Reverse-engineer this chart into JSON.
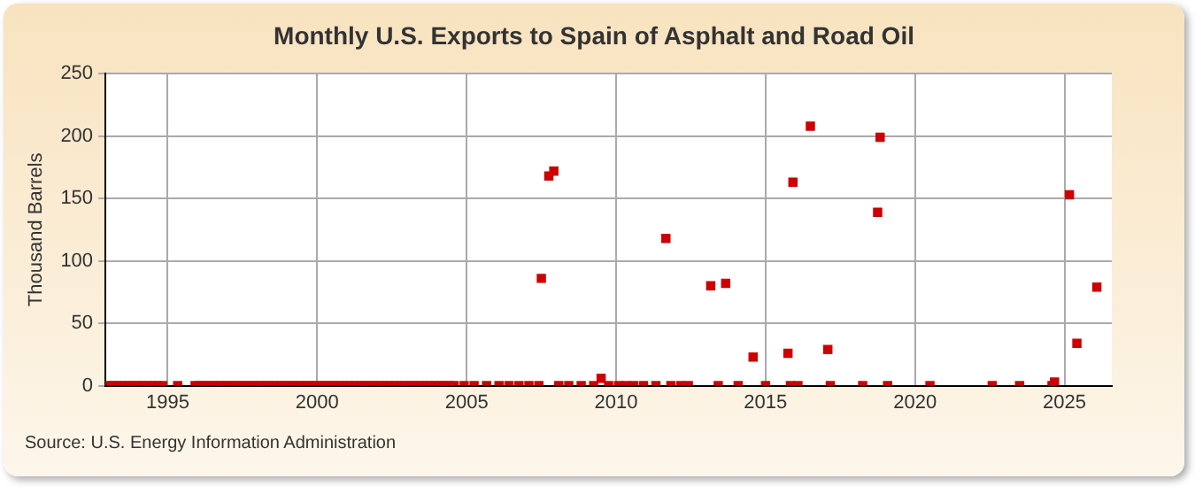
{
  "chart_data": {
    "type": "scatter",
    "title": "Monthly U.S. Exports to Spain of Asphalt and Road Oil",
    "ylabel": "Thousand Barrels",
    "annotations": [
      "Source: U.S. Energy Information Administration"
    ],
    "xlim": [
      "1992-12",
      "2026-08"
    ],
    "xticks": [
      "1995",
      "2000",
      "2005",
      "2010",
      "2015",
      "2020",
      "2025"
    ],
    "ylim": [
      0,
      250
    ],
    "yticks": [
      0,
      50,
      100,
      150,
      200,
      250
    ],
    "grid": true,
    "legend": false,
    "marker": "square",
    "series": [
      {
        "color": "#cc0000",
        "x": [
          "1993-01",
          "1993-03",
          "1993-05",
          "1993-07",
          "1993-09",
          "1993-11",
          "1994-01",
          "1994-03",
          "1994-05",
          "1994-07",
          "1994-09",
          "1994-11",
          "1995-05",
          "1995-12",
          "1996-02",
          "1996-04",
          "1996-06",
          "1996-08",
          "1996-10",
          "1996-12",
          "1997-02",
          "1997-04",
          "1997-06",
          "1997-08",
          "1997-10",
          "1997-12",
          "1998-02",
          "1998-04",
          "1998-06",
          "1998-08",
          "1998-10",
          "1998-12",
          "1999-02",
          "1999-04",
          "1999-06",
          "1999-08",
          "1999-10",
          "1999-12",
          "2000-02",
          "2000-04",
          "2000-06",
          "2000-08",
          "2000-10",
          "2000-12",
          "2001-02",
          "2001-04",
          "2001-06",
          "2001-08",
          "2001-10",
          "2001-12",
          "2002-02",
          "2002-04",
          "2002-06",
          "2002-08",
          "2002-10",
          "2002-12",
          "2003-02",
          "2003-04",
          "2003-06",
          "2003-08",
          "2003-10",
          "2003-12",
          "2004-02",
          "2004-04",
          "2004-06",
          "2004-08",
          "2004-12",
          "2005-04",
          "2005-09",
          "2006-02",
          "2006-06",
          "2006-10",
          "2007-02",
          "2007-06",
          "2007-07",
          "2007-10",
          "2007-12",
          "2008-02",
          "2008-06",
          "2008-11",
          "2009-04",
          "2009-07",
          "2009-10",
          "2010-02",
          "2010-05",
          "2010-08",
          "2010-12",
          "2011-05",
          "2011-09",
          "2011-11",
          "2012-03",
          "2012-06",
          "2013-03",
          "2013-06",
          "2013-09",
          "2014-02",
          "2014-08",
          "2015-01",
          "2015-10",
          "2015-11",
          "2015-12",
          "2016-02",
          "2016-07",
          "2017-02",
          "2017-03",
          "2018-04",
          "2018-10",
          "2018-11",
          "2019-02",
          "2020-07",
          "2022-08",
          "2023-07",
          "2024-08",
          "2024-09",
          "2025-03",
          "2025-06",
          "2026-02"
        ],
        "values": [
          0,
          0,
          0,
          0,
          0,
          0,
          0,
          0,
          0,
          0,
          0,
          0,
          0,
          0,
          0,
          0,
          0,
          0,
          0,
          0,
          0,
          0,
          0,
          0,
          0,
          0,
          0,
          0,
          0,
          0,
          0,
          0,
          0,
          0,
          0,
          0,
          0,
          0,
          0,
          0,
          0,
          0,
          0,
          0,
          0,
          0,
          0,
          0,
          0,
          0,
          0,
          0,
          0,
          0,
          0,
          0,
          0,
          0,
          0,
          0,
          0,
          0,
          0,
          0,
          0,
          0,
          0,
          0,
          0,
          0,
          0,
          0,
          0,
          0,
          86,
          168,
          172,
          0,
          0,
          0,
          0,
          6,
          0,
          0,
          0,
          0,
          0,
          0,
          118,
          0,
          0,
          0,
          80,
          0,
          82,
          0,
          23,
          0,
          26,
          0,
          163,
          0,
          208,
          29,
          0,
          0,
          139,
          199,
          0,
          0,
          0,
          0,
          0,
          3,
          153,
          34,
          79
        ]
      }
    ]
  }
}
